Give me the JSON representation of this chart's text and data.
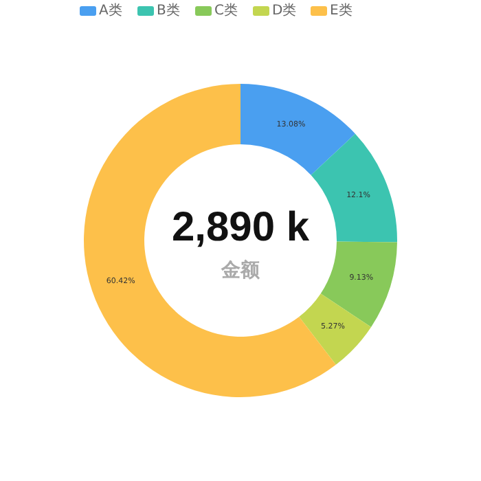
{
  "chart_data": {
    "type": "donut",
    "categories": [
      "A类",
      "B类",
      "C类",
      "D类",
      "E类"
    ],
    "values": [
      13.08,
      12.1,
      9.13,
      5.27,
      60.42
    ],
    "colors": [
      "#4a9ff0",
      "#3cc4b0",
      "#88c95a",
      "#c3d650",
      "#fdc04a"
    ],
    "value_labels": [
      "13.08%",
      "12.1%",
      "9.13%",
      "5.27%",
      "60.42%"
    ],
    "annotations": [
      "2,890 k",
      "金额"
    ],
    "legend": "top"
  }
}
